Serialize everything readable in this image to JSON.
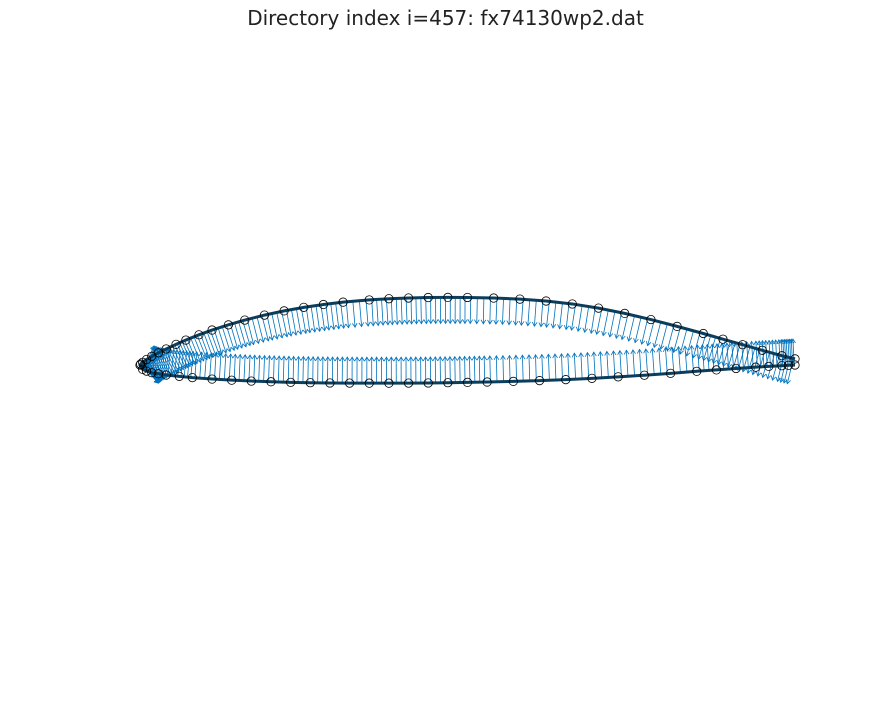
{
  "chart_data": {
    "type": "scatter",
    "title": "Directory index i=457: fx74130wp2.dat",
    "xlabel": "",
    "ylabel": "",
    "axes_visible": false,
    "grid": false,
    "xlim": [
      -0.04,
      1.04
    ],
    "ylim": [
      -0.34,
      0.34
    ],
    "aspect": "equal",
    "series": [
      {
        "name": "upper surface points",
        "marker": "open circle",
        "x": [
          1.0,
          0.98,
          0.95,
          0.92,
          0.89,
          0.86,
          0.82,
          0.78,
          0.74,
          0.7,
          0.66,
          0.62,
          0.58,
          0.54,
          0.5,
          0.47,
          0.44,
          0.41,
          0.38,
          0.35,
          0.31,
          0.28,
          0.25,
          0.22,
          0.19,
          0.16,
          0.135,
          0.11,
          0.09,
          0.07,
          0.055,
          0.04,
          0.028,
          0.018,
          0.01,
          0.004,
          0.001,
          0.0
        ],
        "y": [
          0.0097,
          0.0147,
          0.0234,
          0.0322,
          0.041,
          0.05,
          0.0613,
          0.0721,
          0.0819,
          0.0903,
          0.0969,
          0.1016,
          0.1046,
          0.1063,
          0.1072,
          0.1073,
          0.1071,
          0.1064,
          0.1052,
          0.1033,
          0.0998,
          0.096,
          0.0915,
          0.0859,
          0.0792,
          0.0713,
          0.0637,
          0.0555,
          0.0479,
          0.0396,
          0.0328,
          0.0255,
          0.0193,
          0.0138,
          0.0088,
          0.0043,
          0.0015,
          0.0
        ]
      },
      {
        "name": "lower surface points",
        "marker": "open circle",
        "x": [
          0.004,
          0.01,
          0.018,
          0.028,
          0.04,
          0.06,
          0.08,
          0.11,
          0.14,
          0.17,
          0.2,
          0.23,
          0.26,
          0.29,
          0.32,
          0.35,
          0.38,
          0.41,
          0.44,
          0.47,
          0.5,
          0.53,
          0.57,
          0.61,
          0.65,
          0.69,
          0.73,
          0.77,
          0.81,
          0.85,
          0.88,
          0.91,
          0.94,
          0.96,
          0.98,
          0.99,
          1.0
        ],
        "y": [
          -0.0068,
          -0.0097,
          -0.0122,
          -0.0139,
          -0.0159,
          -0.018,
          -0.02,
          -0.0223,
          -0.0241,
          -0.0255,
          -0.0266,
          -0.0275,
          -0.0281,
          -0.0285,
          -0.0287,
          -0.0288,
          -0.0288,
          -0.0287,
          -0.0285,
          -0.0281,
          -0.0276,
          -0.027,
          -0.026,
          -0.0248,
          -0.0232,
          -0.0212,
          -0.0188,
          -0.0162,
          -0.0132,
          -0.01,
          -0.0078,
          -0.0055,
          -0.0034,
          -0.0022,
          -0.0011,
          -0.0005,
          0.0
        ]
      },
      {
        "name": "surface normals",
        "type": "quiver",
        "direction": "outward",
        "density_per_segment": 4
      }
    ]
  },
  "colors": {
    "outline": "#0b3d5c",
    "normals": "#0072bd",
    "markers": "#000000",
    "background": "#ffffff",
    "title": "#222222"
  }
}
